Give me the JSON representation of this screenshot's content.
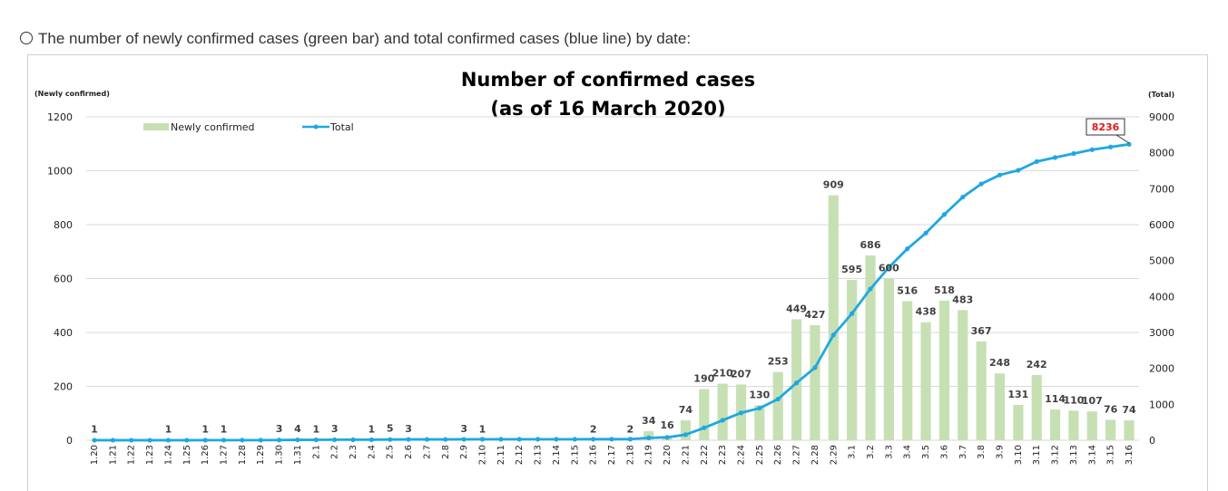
{
  "caption": "The number of newly confirmed cases (green bar) and total confirmed cases (blue line) by date:",
  "chart_data": {
    "type": "bar",
    "title": "Number of confirmed cases",
    "subtitle": "(as of 16 March 2020)",
    "ylabel": "(Newly confirmed)",
    "y2label": "(Total)",
    "ylim": [
      0,
      1200
    ],
    "y2lim": [
      0,
      9000
    ],
    "yticks": [
      "0",
      "200",
      "400",
      "600",
      "800",
      "1000",
      "1200"
    ],
    "y2ticks": [
      "0",
      "1000",
      "2000",
      "3000",
      "4000",
      "5000",
      "6000",
      "7000",
      "8000",
      "9000"
    ],
    "legend": [
      "Newly confirmed",
      "Total"
    ],
    "legend_position": "top-left",
    "grid": true,
    "colors": {
      "bar": "#c6e0b4",
      "line": "#1fa8e0",
      "highlight": "#e01b1b"
    },
    "categories": [
      "1.20",
      "1.21",
      "1.22",
      "1.23",
      "1.24",
      "1.25",
      "1.26",
      "1.27",
      "1.28",
      "1.29",
      "1.30",
      "1.31",
      "2.1",
      "2.2",
      "2.3",
      "2.4",
      "2.5",
      "2.6",
      "2.7",
      "2.8",
      "2.9",
      "2.10",
      "2.11",
      "2.12",
      "2.13",
      "2.14",
      "2.15",
      "2.16",
      "2.17",
      "2.18",
      "2.19",
      "2.20",
      "2.21",
      "2.22",
      "2.23",
      "2.24",
      "2.25",
      "2.26",
      "2.27",
      "2.28",
      "2.29",
      "3.1",
      "3.2",
      "3.3",
      "3.4",
      "3.5",
      "3.6",
      "3.7",
      "3.8",
      "3.9",
      "3.10",
      "3.11",
      "3.12",
      "3.13",
      "3.14",
      "3.15",
      "3.16"
    ],
    "series": [
      {
        "name": "Newly confirmed",
        "kind": "bar",
        "values": [
          1,
          0,
          0,
          0,
          1,
          0,
          1,
          1,
          0,
          0,
          3,
          4,
          1,
          3,
          0,
          1,
          5,
          3,
          0,
          0,
          3,
          1,
          0,
          0,
          0,
          0,
          0,
          2,
          0,
          2,
          34,
          16,
          74,
          190,
          210,
          207,
          130,
          253,
          449,
          427,
          909,
          595,
          686,
          600,
          516,
          438,
          518,
          483,
          367,
          248,
          131,
          242,
          114,
          110,
          107,
          76,
          74
        ]
      },
      {
        "name": "Total",
        "kind": "line",
        "values": [
          1,
          1,
          1,
          1,
          2,
          2,
          3,
          4,
          4,
          4,
          7,
          11,
          12,
          15,
          15,
          16,
          21,
          24,
          24,
          24,
          27,
          28,
          28,
          28,
          28,
          28,
          28,
          30,
          30,
          32,
          66,
          82,
          156,
          346,
          556,
          763,
          893,
          1146,
          1595,
          2022,
          2931,
          3526,
          4212,
          4812,
          5328,
          5766,
          6284,
          6767,
          7134,
          7382,
          7513,
          7755,
          7869,
          7979,
          8086,
          8162,
          8236
        ]
      }
    ],
    "bar_labels": [
      "1",
      "",
      "",
      "",
      "1",
      "",
      "1",
      "1",
      "",
      "",
      "3",
      "4",
      "1",
      "3",
      "",
      "1",
      "5",
      "3",
      "",
      "",
      "3",
      "1",
      "",
      "",
      "",
      "",
      "",
      "2",
      "",
      "2",
      "34",
      "16",
      "74",
      "190",
      "210",
      "207",
      "130",
      "253",
      "449",
      "427",
      "909",
      "595",
      "686",
      "600",
      "516",
      "438",
      "518",
      "483",
      "367",
      "248",
      "131",
      "242",
      "114",
      "110",
      "107",
      "76",
      "74"
    ],
    "callout": "8236"
  }
}
